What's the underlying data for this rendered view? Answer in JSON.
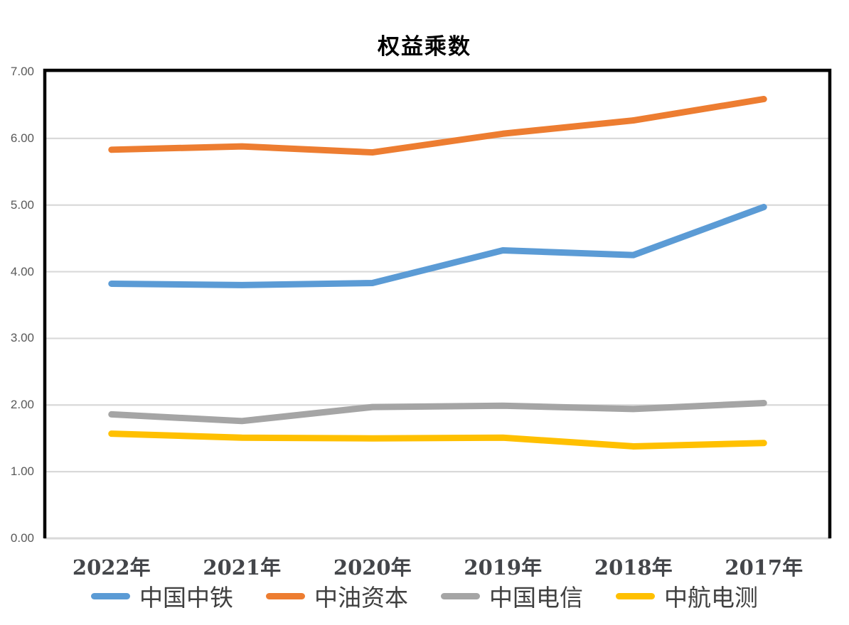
{
  "title": "权益乘数",
  "chart_data": {
    "type": "line",
    "title": "权益乘数",
    "categories": [
      "2022年",
      "2021年",
      "2020年",
      "2019年",
      "2018年",
      "2017年"
    ],
    "series": [
      {
        "name": "中国中铁",
        "color": "#5B9BD5",
        "values": [
          3.82,
          3.8,
          3.83,
          4.32,
          4.25,
          4.97
        ]
      },
      {
        "name": "中油资本",
        "color": "#ED7D31",
        "values": [
          5.83,
          5.88,
          5.79,
          6.07,
          6.27,
          6.59
        ]
      },
      {
        "name": "中国电信",
        "color": "#A5A5A5",
        "values": [
          1.86,
          1.76,
          1.97,
          1.99,
          1.94,
          2.03
        ]
      },
      {
        "name": "中航电测",
        "color": "#FFC000",
        "values": [
          1.57,
          1.51,
          1.5,
          1.51,
          1.38,
          1.43
        ]
      }
    ],
    "ylim": [
      0,
      7
    ],
    "ytick_step": 1,
    "ytick_labels": [
      "0.00",
      "1.00",
      "2.00",
      "3.00",
      "4.00",
      "5.00",
      "6.00",
      "7.00"
    ],
    "grid": true,
    "legend_position": "bottom"
  },
  "colors": {
    "background": "#FFFFFF",
    "gridline": "#D9D9D9",
    "plot_border": "#000000",
    "y_axis_text": "#595959",
    "x_axis_text": "#44464A",
    "legend_text": "#404040"
  }
}
